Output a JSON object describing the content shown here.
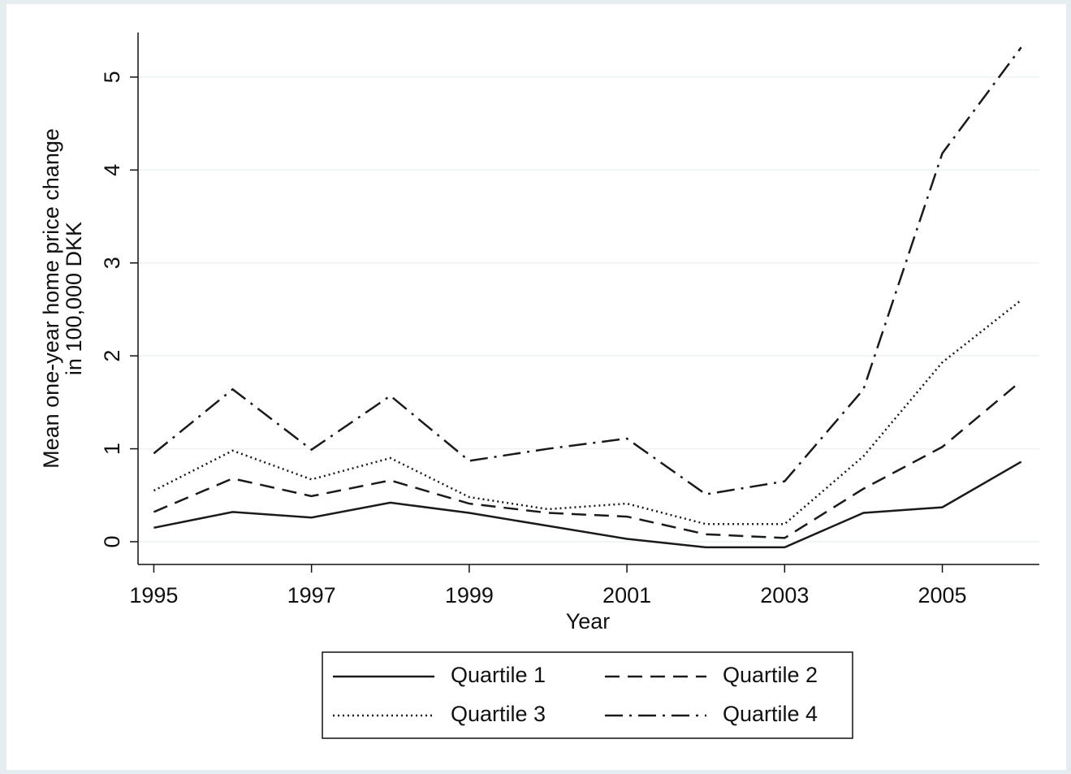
{
  "chart_data": {
    "type": "line",
    "y_label": [
      "Mean one-year home price change",
      "in 100,000 DKK"
    ],
    "x_label": "Year",
    "x": [
      1995,
      1996,
      1997,
      1998,
      1999,
      2000,
      2001,
      2002,
      2003,
      2004,
      2005,
      2006
    ],
    "series": [
      {
        "name": "Quartile 1",
        "color": "#1a1a1a",
        "dash": "solid",
        "values": [
          0.15,
          0.32,
          0.26,
          0.42,
          0.31,
          0.17,
          0.03,
          -0.06,
          -0.06,
          0.31,
          0.37,
          0.86
        ]
      },
      {
        "name": "Quartile 2",
        "color": "#1a1a1a",
        "dash": "dashed",
        "values": [
          0.32,
          0.68,
          0.49,
          0.66,
          0.41,
          0.31,
          0.27,
          0.08,
          0.04,
          0.57,
          1.02,
          1.73
        ]
      },
      {
        "name": "Quartile 3",
        "color": "#1a1a1a",
        "dash": "dotted",
        "values": [
          0.55,
          0.98,
          0.67,
          0.9,
          0.48,
          0.35,
          0.41,
          0.19,
          0.19,
          0.92,
          1.93,
          2.6
        ]
      },
      {
        "name": "Quartile 4",
        "color": "#1a1a1a",
        "dash": "dashdot",
        "values": [
          0.95,
          1.64,
          0.99,
          1.57,
          0.87,
          1.0,
          1.11,
          0.51,
          0.65,
          1.64,
          4.18,
          5.32
        ]
      }
    ],
    "xlim": [
      1994.8,
      2006.23
    ],
    "xticks": [
      1995,
      1997,
      1999,
      2001,
      2003,
      2005
    ],
    "ylim": [
      -0.245,
      5.48
    ],
    "yticks": [
      0,
      1,
      2,
      3,
      4,
      5
    ],
    "grid": true,
    "legend": "bottom"
  }
}
